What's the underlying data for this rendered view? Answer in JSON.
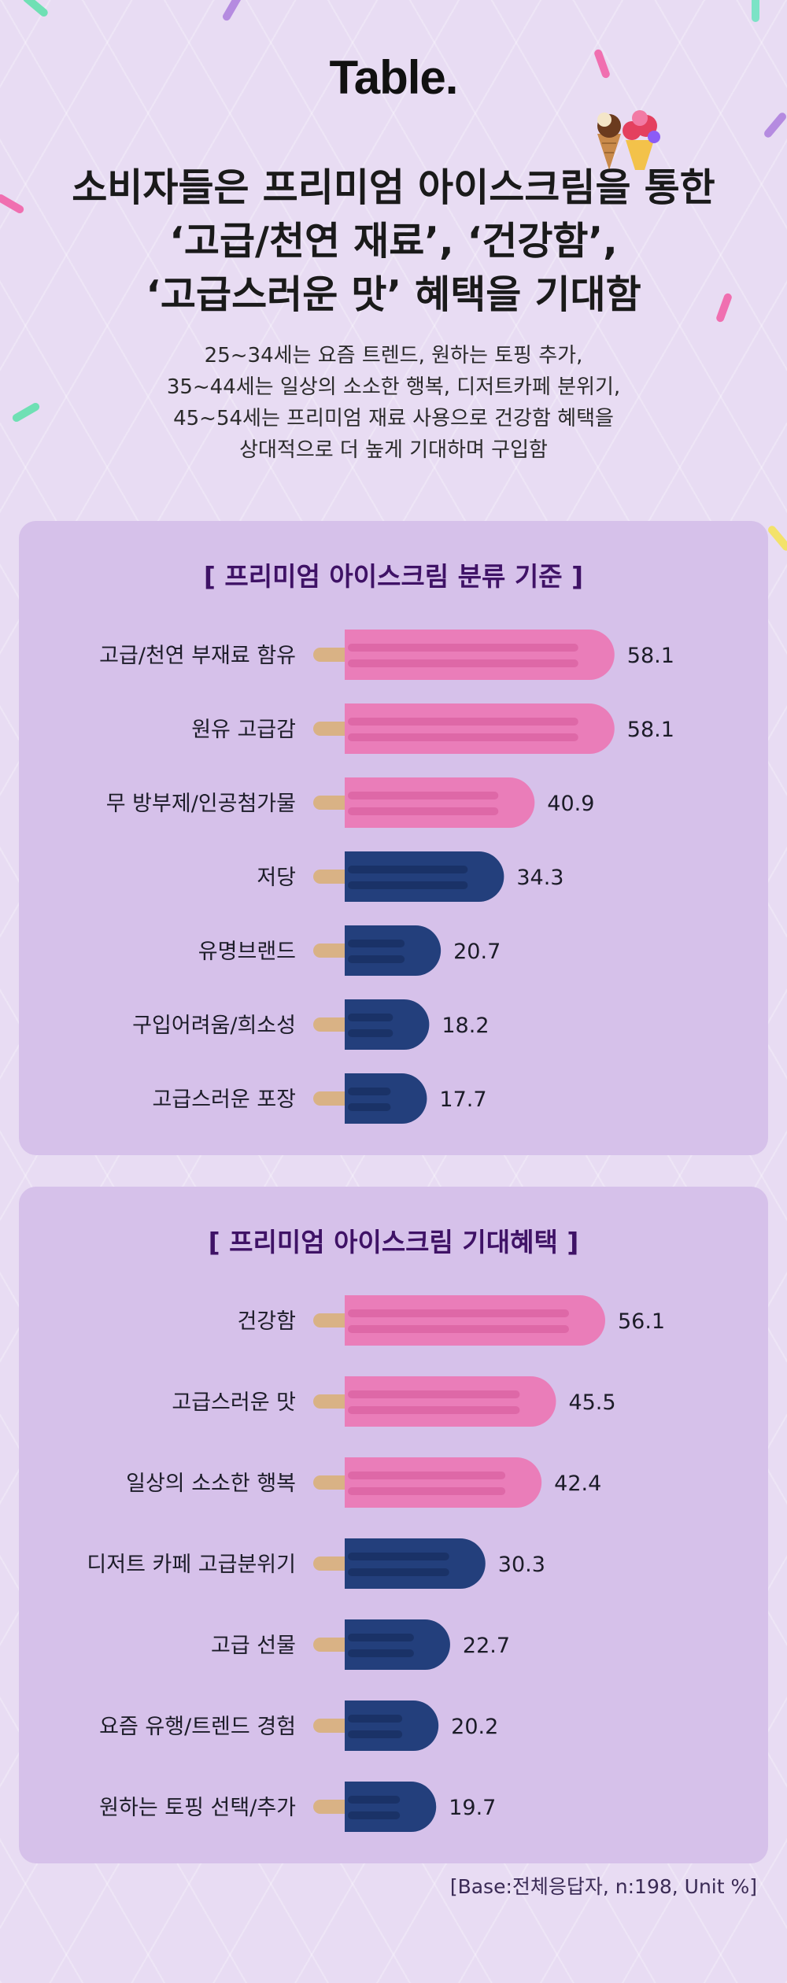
{
  "brand": {
    "logo": "Table."
  },
  "headline": {
    "lines": [
      "소비자들은 프리미엄 아이스크림을 통한",
      "‘고급/천연 재료’, ‘건강함’,",
      "‘고급스러운 맛’ 혜택을 기대함"
    ]
  },
  "subtitle": {
    "lines": [
      "25~34세는 요즘 트렌드, 원하는 토핑 추가,",
      "35~44세는 일상의 소소한 행복, 디저트카페 분위기,",
      "45~54세는 프리미엄 재료 사용으로 건강함 혜택을",
      "상대적으로 더 높게 기대하며 구입함"
    ]
  },
  "colors": {
    "pink": "#ea7db9",
    "pink_stripe": "#d9609f",
    "navy": "#233f7c",
    "navy_stripe": "#172d5e",
    "stick": "#d9b285"
  },
  "chart_data": [
    {
      "type": "bar",
      "title": "[ 프리미엄 아이스크림 분류 기준 ]",
      "categories": [
        "고급/천연 부재료 함유",
        "원유 고급감",
        "무 방부제/인공첨가물",
        "저당",
        "유명브랜드",
        "구입어려움/희소성",
        "고급스러운 포장"
      ],
      "values": [
        58.1,
        58.1,
        40.9,
        34.3,
        20.7,
        18.2,
        17.7
      ],
      "highlight": [
        "pink",
        "pink",
        "pink",
        "navy",
        "navy",
        "navy",
        "navy"
      ]
    },
    {
      "type": "bar",
      "title": "[ 프리미엄 아이스크림 기대혜택 ]",
      "categories": [
        "건강함",
        "고급스러운 맛",
        "일상의 소소한 행복",
        "디저트 카페 고급분위기",
        "고급 선물",
        "요즘 유행/트렌드 경험",
        "원하는 토핑 선택/추가"
      ],
      "values": [
        56.1,
        45.5,
        42.4,
        30.3,
        22.7,
        20.2,
        19.7
      ],
      "highlight": [
        "pink",
        "pink",
        "pink",
        "navy",
        "navy",
        "navy",
        "navy"
      ]
    }
  ],
  "footnote": "[Base:전체응답자, n:198, Unit %]"
}
